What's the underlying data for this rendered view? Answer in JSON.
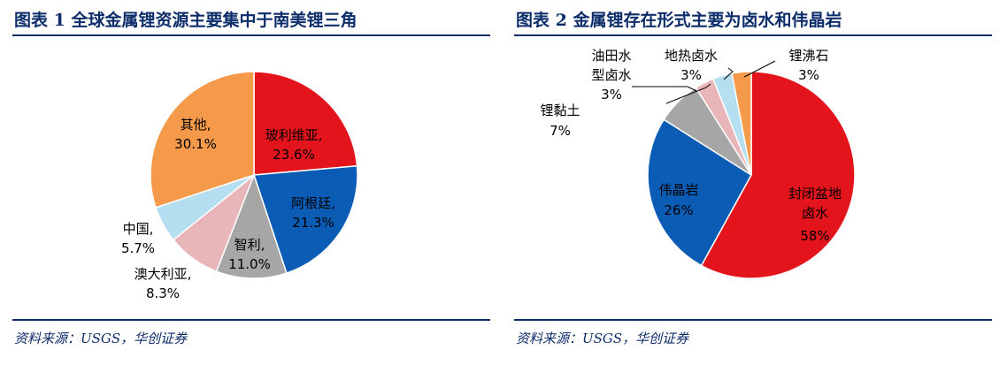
{
  "charts": [
    {
      "title": "图表 1 全球金属锂资源主要集中于南美锂三角",
      "source": "资料来源：USGS，华创证券"
    },
    {
      "title": "图表 2 金属锂存在形式主要为卤水和伟晶岩",
      "source": "资料来源：USGS，华创证券"
    }
  ],
  "chart_data": [
    {
      "type": "pie",
      "title": "图表 1 全球金属锂资源主要集中于南美锂三角",
      "slices": [
        {
          "label": "玻利维亚,",
          "pct_text": "23.6%",
          "value": 23.6,
          "color": "#e3141b"
        },
        {
          "label": "阿根廷,",
          "pct_text": "21.3%",
          "value": 21.3,
          "color": "#0b5cb5"
        },
        {
          "label": "智利,",
          "pct_text": "11.0%",
          "value": 11.0,
          "color": "#a6a6a6"
        },
        {
          "label": "澳大利亚,",
          "pct_text": "8.3%",
          "value": 8.3,
          "color": "#e8b5b8"
        },
        {
          "label": "中国,",
          "pct_text": "5.7%",
          "value": 5.7,
          "color": "#b5dff0"
        },
        {
          "label": "其他,",
          "pct_text": "30.1%",
          "value": 30.1,
          "color": "#f59a4a"
        }
      ]
    },
    {
      "type": "pie",
      "title": "图表 2 金属锂存在形式主要为卤水和伟晶岩",
      "slices": [
        {
          "label": "封闭盆地卤水",
          "pct_text": "58%",
          "value": 58,
          "color": "#e3141b"
        },
        {
          "label": "伟晶岩",
          "pct_text": "26%",
          "value": 26,
          "color": "#0b5cb5"
        },
        {
          "label": "锂黏土",
          "pct_text": "7%",
          "value": 7,
          "color": "#a6a6a6"
        },
        {
          "label": "油田水型卤水",
          "pct_text": "3%",
          "value": 3,
          "color": "#e8b5b8"
        },
        {
          "label": "地热卤水",
          "pct_text": "3%",
          "value": 3,
          "color": "#b5dff0"
        },
        {
          "label": "锂沸石",
          "pct_text": "3%",
          "value": 3,
          "color": "#f59a4a"
        }
      ]
    }
  ]
}
